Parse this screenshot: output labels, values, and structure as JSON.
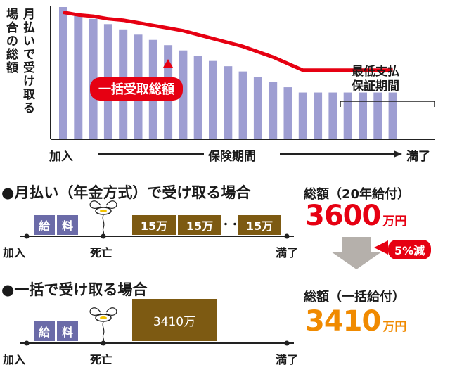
{
  "chart_data": {
    "type": "bar",
    "ylabel": "月払いで受け取る場合の総額",
    "xlabel_start": "加入",
    "xlabel_mid": "保険期間",
    "xlabel_end": "満了",
    "values": [
      100,
      95,
      91,
      87,
      83,
      79,
      75,
      71,
      67,
      63,
      59,
      55,
      51,
      47,
      43,
      39,
      35,
      35,
      35,
      35,
      35,
      35,
      35
    ],
    "lump_sum_line": [
      96,
      94,
      93,
      91,
      90,
      88,
      86,
      84,
      82,
      79,
      76,
      73,
      70,
      66,
      62,
      57,
      52,
      52,
      52,
      52,
      52,
      52,
      52
    ],
    "lump_sum_label": "一括受取総額",
    "min_period_label": [
      "最低支払",
      "保証期間"
    ],
    "colors": {
      "bar": "#9e9ed2",
      "line": "#e60012"
    }
  },
  "monthly": {
    "title": "●月払い（年金方式）で受け取る場合",
    "pay_labels": [
      "給",
      "料"
    ],
    "annuity_labels": [
      "15万",
      "15万",
      "15万"
    ],
    "ellipsis": "・・・",
    "start": "加入",
    "death": "死亡",
    "end": "満了",
    "total_title": "総額（20年給付）",
    "total_value": "3600",
    "total_unit": "万円"
  },
  "reduction_badge": "5%減",
  "lump": {
    "title": "●一括で受け取る場合",
    "pay_labels": [
      "給",
      "料"
    ],
    "amount": "3410万",
    "start": "加入",
    "death": "死亡",
    "end": "満了",
    "total_title": "総額（一括給付）",
    "total_value": "3410",
    "total_unit": "万円"
  },
  "colors": {
    "red": "#e60012",
    "orange": "#f08a00",
    "blue_pill": "#6b6ba8",
    "brown": "#7d5a12",
    "arrow_gray": "#b5b0ab"
  }
}
